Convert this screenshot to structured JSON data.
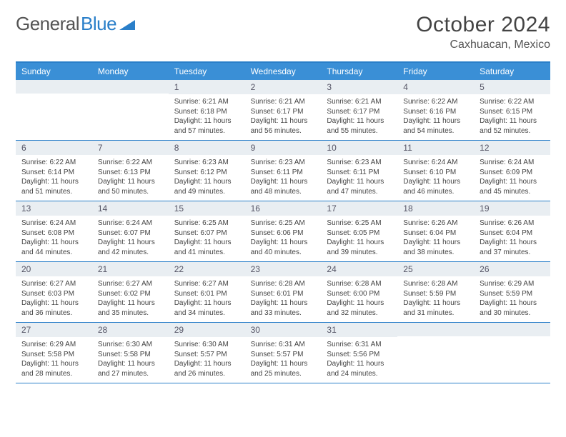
{
  "logo": {
    "text1": "General",
    "text2": "Blue"
  },
  "title": "October 2024",
  "location": "Caxhuacan, Mexico",
  "dow": [
    "Sunday",
    "Monday",
    "Tuesday",
    "Wednesday",
    "Thursday",
    "Friday",
    "Saturday"
  ],
  "colors": {
    "header_bar": "#3a8fd6",
    "accent": "#2a7fc9",
    "daynum_bg": "#e9eef2"
  },
  "weeks": [
    [
      null,
      null,
      {
        "n": "1",
        "sr": "6:21 AM",
        "ss": "6:18 PM",
        "dl": "11 hours and 57 minutes."
      },
      {
        "n": "2",
        "sr": "6:21 AM",
        "ss": "6:17 PM",
        "dl": "11 hours and 56 minutes."
      },
      {
        "n": "3",
        "sr": "6:21 AM",
        "ss": "6:17 PM",
        "dl": "11 hours and 55 minutes."
      },
      {
        "n": "4",
        "sr": "6:22 AM",
        "ss": "6:16 PM",
        "dl": "11 hours and 54 minutes."
      },
      {
        "n": "5",
        "sr": "6:22 AM",
        "ss": "6:15 PM",
        "dl": "11 hours and 52 minutes."
      }
    ],
    [
      {
        "n": "6",
        "sr": "6:22 AM",
        "ss": "6:14 PM",
        "dl": "11 hours and 51 minutes."
      },
      {
        "n": "7",
        "sr": "6:22 AM",
        "ss": "6:13 PM",
        "dl": "11 hours and 50 minutes."
      },
      {
        "n": "8",
        "sr": "6:23 AM",
        "ss": "6:12 PM",
        "dl": "11 hours and 49 minutes."
      },
      {
        "n": "9",
        "sr": "6:23 AM",
        "ss": "6:11 PM",
        "dl": "11 hours and 48 minutes."
      },
      {
        "n": "10",
        "sr": "6:23 AM",
        "ss": "6:11 PM",
        "dl": "11 hours and 47 minutes."
      },
      {
        "n": "11",
        "sr": "6:24 AM",
        "ss": "6:10 PM",
        "dl": "11 hours and 46 minutes."
      },
      {
        "n": "12",
        "sr": "6:24 AM",
        "ss": "6:09 PM",
        "dl": "11 hours and 45 minutes."
      }
    ],
    [
      {
        "n": "13",
        "sr": "6:24 AM",
        "ss": "6:08 PM",
        "dl": "11 hours and 44 minutes."
      },
      {
        "n": "14",
        "sr": "6:24 AM",
        "ss": "6:07 PM",
        "dl": "11 hours and 42 minutes."
      },
      {
        "n": "15",
        "sr": "6:25 AM",
        "ss": "6:07 PM",
        "dl": "11 hours and 41 minutes."
      },
      {
        "n": "16",
        "sr": "6:25 AM",
        "ss": "6:06 PM",
        "dl": "11 hours and 40 minutes."
      },
      {
        "n": "17",
        "sr": "6:25 AM",
        "ss": "6:05 PM",
        "dl": "11 hours and 39 minutes."
      },
      {
        "n": "18",
        "sr": "6:26 AM",
        "ss": "6:04 PM",
        "dl": "11 hours and 38 minutes."
      },
      {
        "n": "19",
        "sr": "6:26 AM",
        "ss": "6:04 PM",
        "dl": "11 hours and 37 minutes."
      }
    ],
    [
      {
        "n": "20",
        "sr": "6:27 AM",
        "ss": "6:03 PM",
        "dl": "11 hours and 36 minutes."
      },
      {
        "n": "21",
        "sr": "6:27 AM",
        "ss": "6:02 PM",
        "dl": "11 hours and 35 minutes."
      },
      {
        "n": "22",
        "sr": "6:27 AM",
        "ss": "6:01 PM",
        "dl": "11 hours and 34 minutes."
      },
      {
        "n": "23",
        "sr": "6:28 AM",
        "ss": "6:01 PM",
        "dl": "11 hours and 33 minutes."
      },
      {
        "n": "24",
        "sr": "6:28 AM",
        "ss": "6:00 PM",
        "dl": "11 hours and 32 minutes."
      },
      {
        "n": "25",
        "sr": "6:28 AM",
        "ss": "5:59 PM",
        "dl": "11 hours and 31 minutes."
      },
      {
        "n": "26",
        "sr": "6:29 AM",
        "ss": "5:59 PM",
        "dl": "11 hours and 30 minutes."
      }
    ],
    [
      {
        "n": "27",
        "sr": "6:29 AM",
        "ss": "5:58 PM",
        "dl": "11 hours and 28 minutes."
      },
      {
        "n": "28",
        "sr": "6:30 AM",
        "ss": "5:58 PM",
        "dl": "11 hours and 27 minutes."
      },
      {
        "n": "29",
        "sr": "6:30 AM",
        "ss": "5:57 PM",
        "dl": "11 hours and 26 minutes."
      },
      {
        "n": "30",
        "sr": "6:31 AM",
        "ss": "5:57 PM",
        "dl": "11 hours and 25 minutes."
      },
      {
        "n": "31",
        "sr": "6:31 AM",
        "ss": "5:56 PM",
        "dl": "11 hours and 24 minutes."
      },
      null,
      null
    ]
  ],
  "labels": {
    "sunrise": "Sunrise:",
    "sunset": "Sunset:",
    "daylight": "Daylight:"
  }
}
